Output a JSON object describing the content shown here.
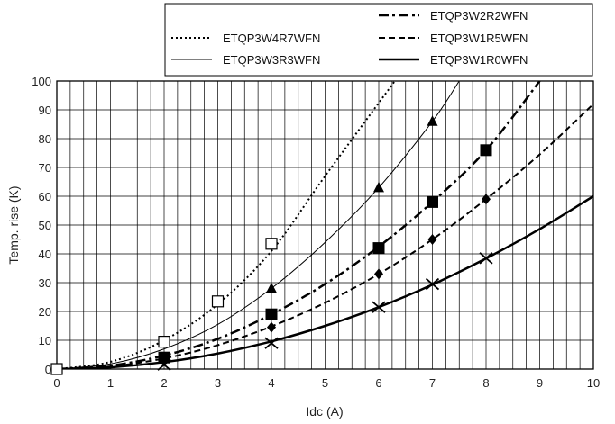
{
  "chart_data": {
    "type": "line",
    "xlabel": "Idc (A)",
    "ylabel": "Temp. rise (K)",
    "xlim": [
      0,
      10
    ],
    "ylim": [
      0,
      100
    ],
    "x_ticks": [
      0,
      1,
      2,
      3,
      4,
      5,
      6,
      7,
      8,
      9,
      10
    ],
    "y_ticks": [
      0,
      10,
      20,
      30,
      40,
      50,
      60,
      70,
      80,
      90,
      100
    ],
    "grid": true,
    "legend_position": "top-right, above plot",
    "series": [
      {
        "name": "ETQP3W4R7WFN",
        "line_style": "dotted",
        "line_width": 2,
        "marker": "open-square",
        "curve": {
          "x": [
            0,
            1,
            2,
            3,
            4,
            5,
            6.3
          ],
          "y": [
            0,
            2.5,
            10,
            22.5,
            41,
            67,
            100
          ]
        },
        "points": [
          {
            "x": 0,
            "y": 0
          },
          {
            "x": 2,
            "y": 9.5
          },
          {
            "x": 3,
            "y": 23.5
          },
          {
            "x": 4,
            "y": 43.5
          }
        ]
      },
      {
        "name": "ETQP3W3R3WFN",
        "line_style": "solid",
        "line_width": 1,
        "marker": "triangle",
        "curve": {
          "x": [
            0,
            1,
            2,
            3,
            4,
            5,
            6,
            7,
            7.5
          ],
          "y": [
            0,
            1.8,
            7,
            15.5,
            28,
            44,
            63,
            86,
            100
          ]
        },
        "points": [
          {
            "x": 4,
            "y": 28
          },
          {
            "x": 6,
            "y": 63
          },
          {
            "x": 7,
            "y": 86
          }
        ]
      },
      {
        "name": "ETQP3W2R2WFN",
        "line_style": "dash-dot",
        "line_width": 2.5,
        "marker": "filled-square",
        "curve": {
          "x": [
            0,
            1,
            2,
            3,
            4,
            5,
            6,
            7,
            8,
            9
          ],
          "y": [
            0,
            1.2,
            4.7,
            10.5,
            19,
            29.5,
            42.5,
            58,
            76,
            100
          ]
        },
        "points": [
          {
            "x": 2,
            "y": 4
          },
          {
            "x": 4,
            "y": 19
          },
          {
            "x": 6,
            "y": 42
          },
          {
            "x": 7,
            "y": 58
          },
          {
            "x": 8,
            "y": 76
          }
        ]
      },
      {
        "name": "ETQP3W1R5WFN",
        "line_style": "dashed",
        "line_width": 2,
        "marker": "filled-diamond",
        "curve": {
          "x": [
            0,
            1,
            2,
            3,
            4,
            5,
            6,
            7,
            8,
            9,
            10
          ],
          "y": [
            0,
            0.9,
            3.7,
            8.3,
            14.8,
            23,
            33,
            45,
            59,
            74.5,
            92
          ]
        },
        "points": [
          {
            "x": 2,
            "y": 3.5
          },
          {
            "x": 4,
            "y": 14.5
          },
          {
            "x": 6,
            "y": 33
          },
          {
            "x": 7,
            "y": 45
          },
          {
            "x": 8,
            "y": 59
          }
        ]
      },
      {
        "name": "ETQP3W1R0WFN",
        "line_style": "solid",
        "line_width": 2.5,
        "marker": "x-cross",
        "curve": {
          "x": [
            0,
            1,
            2,
            3,
            4,
            5,
            6,
            7,
            8,
            9,
            10
          ],
          "y": [
            0,
            0.6,
            2.4,
            5.4,
            9.6,
            15,
            21.5,
            29.3,
            38.4,
            48.6,
            60
          ]
        },
        "points": [
          {
            "x": 2,
            "y": 1.5
          },
          {
            "x": 4,
            "y": 9
          },
          {
            "x": 6,
            "y": 21.5
          },
          {
            "x": 7,
            "y": 29.5
          },
          {
            "x": 8,
            "y": 38.5
          }
        ]
      }
    ]
  }
}
